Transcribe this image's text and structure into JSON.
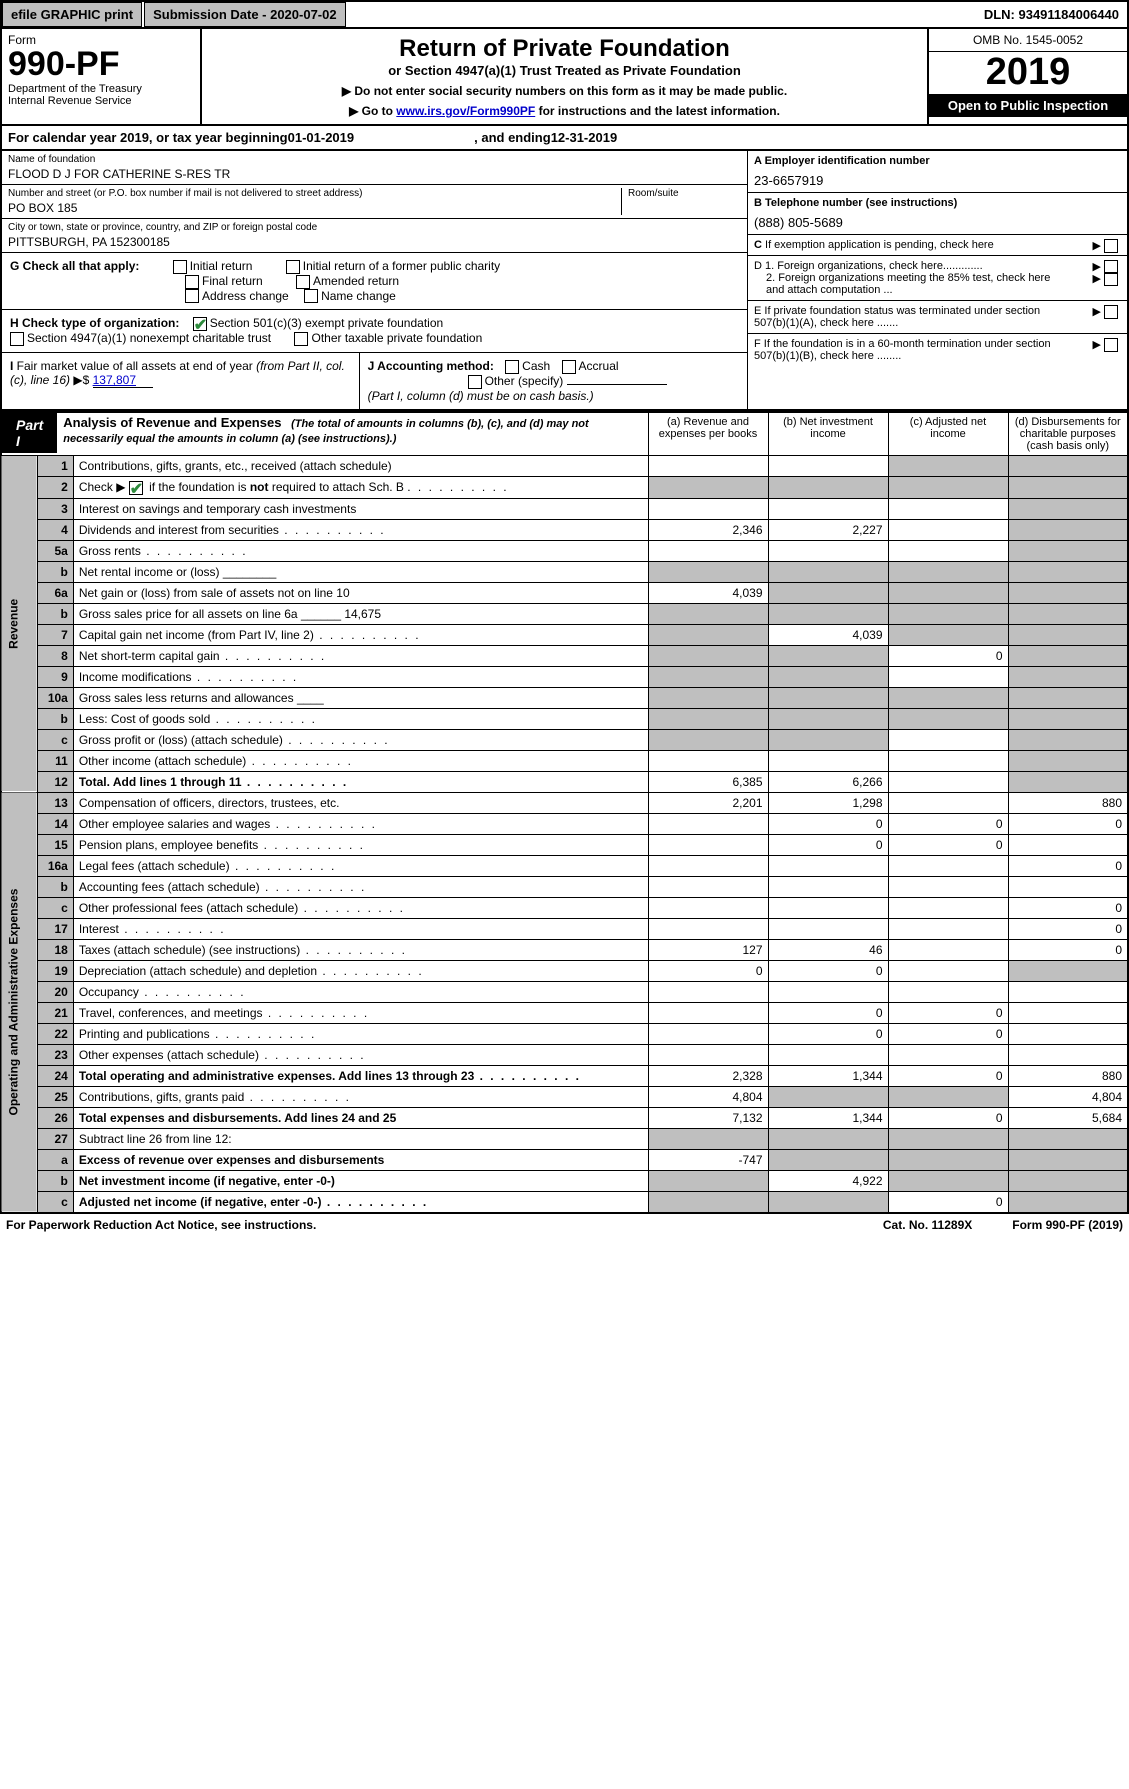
{
  "topbar": {
    "efile": "efile GRAPHIC print",
    "submission": "Submission Date - 2020-07-02",
    "dln": "DLN: 93491184006440"
  },
  "header": {
    "form_label": "Form",
    "form_num": "990-PF",
    "dept": "Department of the Treasury\nInternal Revenue Service",
    "title": "Return of Private Foundation",
    "subtitle": "or Section 4947(a)(1) Trust Treated as Private Foundation",
    "note1": "▶ Do not enter social security numbers on this form as it may be made public.",
    "note2_pre": "▶ Go to ",
    "note2_link": "www.irs.gov/Form990PF",
    "note2_post": " for instructions and the latest information.",
    "omb": "OMB No. 1545-0052",
    "year": "2019",
    "open": "Open to Public Inspection"
  },
  "calyear": {
    "pre": "For calendar year 2019, or tax year beginning ",
    "begin": "01-01-2019",
    "mid": ", and ending ",
    "end": "12-31-2019"
  },
  "org": {
    "name_label": "Name of foundation",
    "name": "FLOOD D J FOR CATHERINE S-RES TR",
    "addr_label": "Number and street (or P.O. box number if mail is not delivered to street address)",
    "addr": "PO BOX 185",
    "room_label": "Room/suite",
    "city_label": "City or town, state or province, country, and ZIP or foreign postal code",
    "city": "PITTSBURGH, PA  152300185",
    "ein_label": "A Employer identification number",
    "ein": "23-6657919",
    "phone_label": "B Telephone number (see instructions)",
    "phone": "(888) 805-5689"
  },
  "right": {
    "c": "C If exemption application is pending, check here",
    "d1": "D 1. Foreign organizations, check here.............",
    "d2": "2. Foreign organizations meeting the 85% test, check here and attach computation ...",
    "e": "E   If private foundation status was terminated under section 507(b)(1)(A), check here .......",
    "f": "F   If the foundation is in a 60-month termination under section 507(b)(1)(B), check here ........"
  },
  "g": {
    "label": "G Check all that apply:",
    "opts": [
      "Initial return",
      "Initial return of a former public charity",
      "Final return",
      "Amended return",
      "Address change",
      "Name change"
    ]
  },
  "h": {
    "label": "H Check type of organization:",
    "opt1": "Section 501(c)(3) exempt private foundation",
    "opt2": "Section 4947(a)(1) nonexempt charitable trust",
    "opt3": "Other taxable private foundation"
  },
  "i": {
    "label": "I Fair market value of all assets at end of year (from Part II, col. (c), line 16) ▶$",
    "val": "137,807"
  },
  "j": {
    "label": "J Accounting method:",
    "cash": "Cash",
    "accrual": "Accrual",
    "other": "Other (specify)",
    "note": "(Part I, column (d) must be on cash basis.)"
  },
  "part1": {
    "badge": "Part I",
    "title": "Analysis of Revenue and Expenses",
    "desc": "(The total of amounts in columns (b), (c), and (d) may not necessarily equal the amounts in column (a) (see instructions).)",
    "col_a": "(a)   Revenue and expenses per books",
    "col_b": "(b)  Net investment income",
    "col_c": "(c)  Adjusted net income",
    "col_d": "(d)  Disbursements for charitable purposes (cash basis only)"
  },
  "side": {
    "rev": "Revenue",
    "exp": "Operating and Administrative Expenses"
  },
  "rows": [
    {
      "n": "1",
      "d": "Contributions, gifts, grants, etc., received (attach schedule)",
      "a": "",
      "b": "",
      "c": "s",
      "dcol": "s"
    },
    {
      "n": "2",
      "d": "Check ▶ ☑ if the foundation is not required to attach Sch. B",
      "a": "s",
      "b": "s",
      "c": "s",
      "dcol": "s",
      "dots": 1
    },
    {
      "n": "3",
      "d": "Interest on savings and temporary cash investments",
      "a": "",
      "b": "",
      "c": "",
      "dcol": "s"
    },
    {
      "n": "4",
      "d": "Dividends and interest from securities",
      "a": "2,346",
      "b": "2,227",
      "c": "",
      "dcol": "s",
      "dots": 1
    },
    {
      "n": "5a",
      "d": "Gross rents",
      "a": "",
      "b": "",
      "c": "",
      "dcol": "s",
      "dots": 1
    },
    {
      "n": "b",
      "d": "Net rental income or (loss)  ________",
      "a": "s",
      "b": "s",
      "c": "s",
      "dcol": "s"
    },
    {
      "n": "6a",
      "d": "Net gain or (loss) from sale of assets not on line 10",
      "a": "4,039",
      "b": "s",
      "c": "s",
      "dcol": "s"
    },
    {
      "n": "b",
      "d": "Gross sales price for all assets on line 6a ______ 14,675",
      "a": "s",
      "b": "s",
      "c": "s",
      "dcol": "s"
    },
    {
      "n": "7",
      "d": "Capital gain net income (from Part IV, line 2)",
      "a": "s",
      "b": "4,039",
      "c": "s",
      "dcol": "s",
      "dots": 1
    },
    {
      "n": "8",
      "d": "Net short-term capital gain",
      "a": "s",
      "b": "s",
      "c": "0",
      "dcol": "s",
      "dots": 1
    },
    {
      "n": "9",
      "d": "Income modifications",
      "a": "s",
      "b": "s",
      "c": "",
      "dcol": "s",
      "dots": 1
    },
    {
      "n": "10a",
      "d": "Gross sales less returns and allowances  ____",
      "a": "s",
      "b": "s",
      "c": "s",
      "dcol": "s"
    },
    {
      "n": "b",
      "d": "Less: Cost of goods sold",
      "a": "s",
      "b": "s",
      "c": "s",
      "dcol": "s",
      "dots": 1
    },
    {
      "n": "c",
      "d": "Gross profit or (loss) (attach schedule)",
      "a": "s",
      "b": "s",
      "c": "",
      "dcol": "s",
      "dots": 1
    },
    {
      "n": "11",
      "d": "Other income (attach schedule)",
      "a": "",
      "b": "",
      "c": "",
      "dcol": "s",
      "dots": 1
    },
    {
      "n": "12",
      "d": "Total. Add lines 1 through 11",
      "a": "6,385",
      "b": "6,266",
      "c": "",
      "dcol": "s",
      "bold": 1,
      "dots": 1
    },
    {
      "n": "13",
      "d": "Compensation of officers, directors, trustees, etc.",
      "a": "2,201",
      "b": "1,298",
      "c": "",
      "dcol": "880"
    },
    {
      "n": "14",
      "d": "Other employee salaries and wages",
      "a": "",
      "b": "0",
      "c": "0",
      "dcol": "0",
      "dots": 1
    },
    {
      "n": "15",
      "d": "Pension plans, employee benefits",
      "a": "",
      "b": "0",
      "c": "0",
      "dcol": "",
      "dots": 1
    },
    {
      "n": "16a",
      "d": "Legal fees (attach schedule)",
      "a": "",
      "b": "",
      "c": "",
      "dcol": "0",
      "dots": 1
    },
    {
      "n": "b",
      "d": "Accounting fees (attach schedule)",
      "a": "",
      "b": "",
      "c": "",
      "dcol": "",
      "dots": 1
    },
    {
      "n": "c",
      "d": "Other professional fees (attach schedule)",
      "a": "",
      "b": "",
      "c": "",
      "dcol": "0",
      "dots": 1
    },
    {
      "n": "17",
      "d": "Interest",
      "a": "",
      "b": "",
      "c": "",
      "dcol": "0",
      "dots": 1
    },
    {
      "n": "18",
      "d": "Taxes (attach schedule) (see instructions)",
      "a": "127",
      "b": "46",
      "c": "",
      "dcol": "0",
      "dots": 1
    },
    {
      "n": "19",
      "d": "Depreciation (attach schedule) and depletion",
      "a": "0",
      "b": "0",
      "c": "",
      "dcol": "s",
      "dots": 1
    },
    {
      "n": "20",
      "d": "Occupancy",
      "a": "",
      "b": "",
      "c": "",
      "dcol": "",
      "dots": 1
    },
    {
      "n": "21",
      "d": "Travel, conferences, and meetings",
      "a": "",
      "b": "0",
      "c": "0",
      "dcol": "",
      "dots": 1
    },
    {
      "n": "22",
      "d": "Printing and publications",
      "a": "",
      "b": "0",
      "c": "0",
      "dcol": "",
      "dots": 1
    },
    {
      "n": "23",
      "d": "Other expenses (attach schedule)",
      "a": "",
      "b": "",
      "c": "",
      "dcol": "",
      "dots": 1
    },
    {
      "n": "24",
      "d": "Total operating and administrative expenses. Add lines 13 through 23",
      "a": "2,328",
      "b": "1,344",
      "c": "0",
      "dcol": "880",
      "bold": 1,
      "dots": 1
    },
    {
      "n": "25",
      "d": "Contributions, gifts, grants paid",
      "a": "4,804",
      "b": "s",
      "c": "s",
      "dcol": "4,804",
      "dots": 1
    },
    {
      "n": "26",
      "d": "Total expenses and disbursements. Add lines 24 and 25",
      "a": "7,132",
      "b": "1,344",
      "c": "0",
      "dcol": "5,684",
      "bold": 1
    },
    {
      "n": "27",
      "d": "Subtract line 26 from line 12:",
      "a": "s",
      "b": "s",
      "c": "s",
      "dcol": "s"
    },
    {
      "n": "a",
      "d": "Excess of revenue over expenses and disbursements",
      "a": "-747",
      "b": "s",
      "c": "s",
      "dcol": "s",
      "bold": 1
    },
    {
      "n": "b",
      "d": "Net investment income (if negative, enter -0-)",
      "a": "s",
      "b": "4,922",
      "c": "s",
      "dcol": "s",
      "bold": 1
    },
    {
      "n": "c",
      "d": "Adjusted net income (if negative, enter -0-)",
      "a": "s",
      "b": "s",
      "c": "0",
      "dcol": "s",
      "bold": 1,
      "dots": 1
    }
  ],
  "footer": {
    "left": "For Paperwork Reduction Act Notice, see instructions.",
    "mid": "Cat. No. 11289X",
    "right": "Form 990-PF (2019)"
  },
  "colors": {
    "shade": "#bfbfbf",
    "link": "#0000cc",
    "check": "#2e8b3d"
  }
}
